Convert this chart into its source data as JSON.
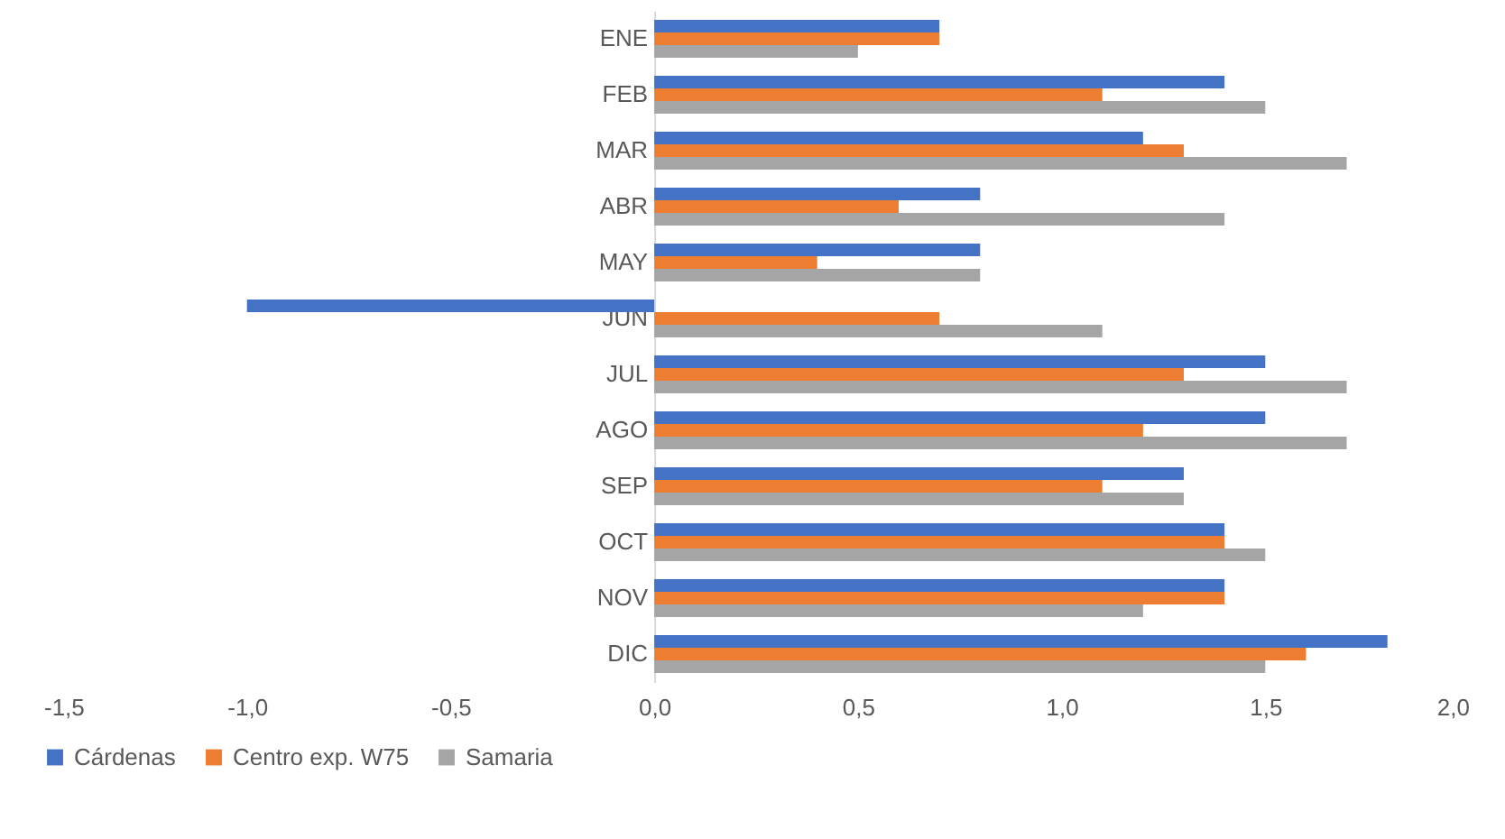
{
  "chart_data": {
    "type": "bar",
    "orientation": "horizontal",
    "categories": [
      "ENE",
      "FEB",
      "MAR",
      "ABR",
      "MAY",
      "JUN",
      "JUL",
      "AGO",
      "SEP",
      "OCT",
      "NOV",
      "DIC"
    ],
    "series": [
      {
        "name": "Cárdenas",
        "color": "#4472c4",
        "values": [
          0.7,
          1.4,
          1.2,
          0.8,
          0.8,
          -1.0,
          1.5,
          1.5,
          1.3,
          1.4,
          1.4,
          1.8
        ]
      },
      {
        "name": "Centro exp. W75",
        "color": "#ed7d31",
        "values": [
          0.7,
          1.1,
          1.3,
          0.6,
          0.4,
          0.7,
          1.3,
          1.2,
          1.1,
          1.4,
          1.4,
          1.6
        ]
      },
      {
        "name": "Samaria",
        "color": "#a5a5a5",
        "values": [
          0.5,
          1.5,
          1.7,
          1.4,
          0.8,
          1.1,
          1.7,
          1.7,
          1.3,
          1.5,
          1.2,
          1.5
        ]
      }
    ],
    "xlim": [
      -1.5,
      2.0
    ],
    "xticks": [
      {
        "value": -1.5,
        "label": "-1,5"
      },
      {
        "value": -1.0,
        "label": "-1,0"
      },
      {
        "value": -0.5,
        "label": "-0,5"
      },
      {
        "value": 0,
        "label": "0,0"
      },
      {
        "value": 0.5,
        "label": "0,5"
      },
      {
        "value": 1.0,
        "label": "1,0"
      },
      {
        "value": 1.5,
        "label": "1,5"
      },
      {
        "value": 2.0,
        "label": "2,0"
      }
    ],
    "grid": false,
    "legend": "bottom"
  }
}
